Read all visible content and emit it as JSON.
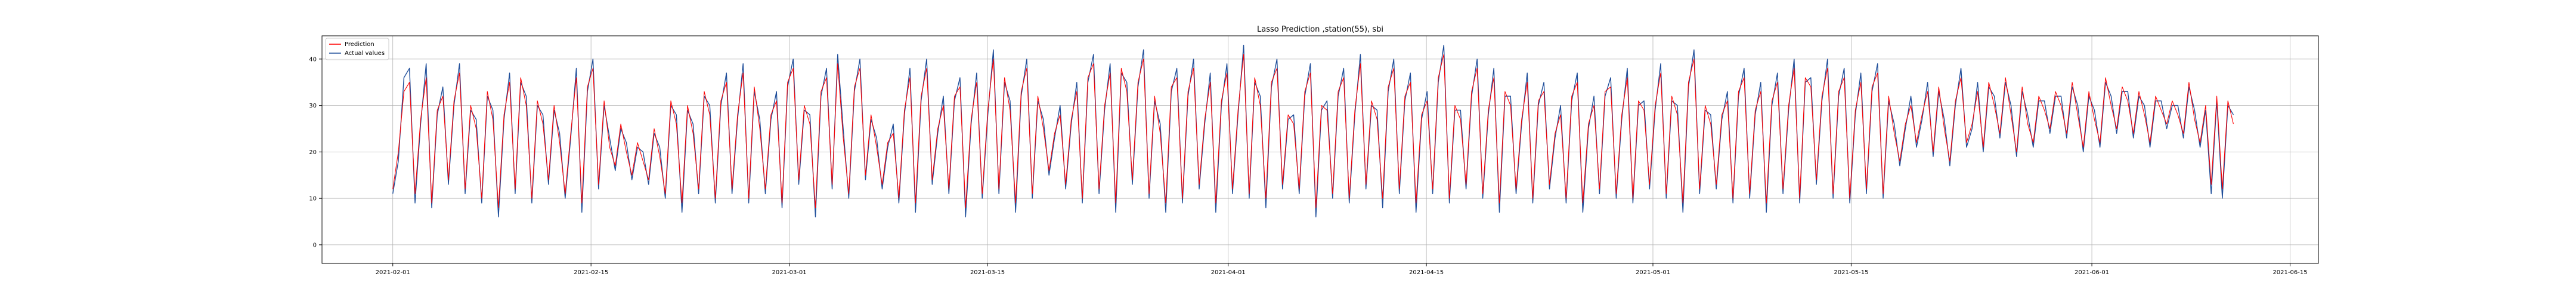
{
  "chart_data": {
    "type": "line",
    "title": "Lasso Prediction ,station(55), sbi",
    "xlabel": "",
    "ylabel": "",
    "x_tick_labels": [
      "2021-02-01",
      "2021-02-15",
      "2021-03-01",
      "2021-03-15",
      "2021-04-01",
      "2021-04-15",
      "2021-05-01",
      "2021-05-15",
      "2021-06-01",
      "2021-06-15"
    ],
    "y_ticks": [
      0,
      10,
      20,
      30,
      40
    ],
    "xlim": [
      "2021-01-27",
      "2021-06-17"
    ],
    "ylim": [
      -4,
      45
    ],
    "x_start": "2021-02-01",
    "x_end": "2021-06-11",
    "grid": true,
    "legend_position": "upper left",
    "series": [
      {
        "name": "Prediction",
        "color": "#ff0000",
        "values": [
          12,
          20,
          33,
          35,
          11,
          27,
          36,
          9,
          29,
          32,
          14,
          31,
          37,
          12,
          30,
          25,
          10,
          33,
          27,
          8,
          28,
          35,
          12,
          36,
          30,
          10,
          31,
          26,
          14,
          30,
          22,
          11,
          24,
          36,
          9,
          34,
          38,
          13,
          31,
          21,
          17,
          26,
          20,
          15,
          22,
          18,
          14,
          25,
          19,
          11,
          31,
          26,
          9,
          30,
          24,
          12,
          33,
          28,
          10,
          31,
          35,
          12,
          28,
          37,
          10,
          34,
          25,
          12,
          28,
          31,
          9,
          35,
          38,
          14,
          30,
          26,
          8,
          33,
          36,
          13,
          39,
          23,
          11,
          34,
          38,
          15,
          28,
          21,
          13,
          22,
          24,
          10,
          29,
          36,
          9,
          32,
          38,
          14,
          25,
          30,
          12,
          32,
          34,
          8,
          27,
          35,
          11,
          29,
          40,
          12,
          36,
          29,
          9,
          33,
          38,
          11,
          32,
          25,
          16,
          24,
          28,
          13,
          27,
          33,
          10,
          36,
          39,
          12,
          30,
          37,
          9,
          38,
          33,
          14,
          35,
          40,
          11,
          32,
          24,
          9,
          34,
          36,
          10,
          33,
          38,
          13,
          27,
          35,
          9,
          31,
          37,
          12,
          29,
          41,
          11,
          36,
          30,
          10,
          35,
          38,
          13,
          28,
          26,
          12,
          33,
          37,
          8,
          30,
          29,
          11,
          33,
          36,
          10,
          29,
          39,
          13,
          31,
          27,
          10,
          34,
          38,
          12,
          32,
          35,
          9,
          28,
          31,
          12,
          36,
          41,
          10,
          30,
          27,
          13,
          33,
          38,
          11,
          29,
          36,
          9,
          33,
          30,
          12,
          27,
          35,
          10,
          31,
          33,
          13,
          24,
          28,
          10,
          32,
          35,
          9,
          26,
          30,
          12,
          33,
          34,
          11,
          28,
          36,
          10,
          31,
          29,
          13,
          30,
          37,
          11,
          32,
          28,
          9,
          35,
          40,
          12,
          30,
          26,
          13,
          28,
          31,
          10,
          33,
          36,
          11,
          29,
          33,
          9,
          31,
          35,
          12,
          30,
          38,
          10,
          36,
          34,
          14,
          32,
          38,
          11,
          33,
          36,
          10,
          29,
          35,
          12,
          34,
          37,
          11,
          32,
          24,
          18,
          26,
          30,
          22,
          28,
          33,
          20,
          34,
          25,
          18,
          31,
          36,
          22,
          26,
          33,
          21,
          35,
          30,
          24,
          36,
          28,
          20,
          34,
          26,
          22,
          32,
          29,
          25,
          33,
          30,
          24,
          35,
          28,
          21,
          33,
          27,
          22,
          36,
          30,
          25,
          34,
          31,
          24,
          33,
          28,
          22,
          32,
          29,
          26,
          31,
          28,
          24,
          35,
          27,
          22,
          30,
          13,
          32,
          12,
          31,
          26
        ]
      },
      {
        "name": "Actual values",
        "color": "#1f4e9a",
        "values": [
          11,
          18,
          36,
          38,
          9,
          26,
          39,
          8,
          28,
          34,
          13,
          30,
          39,
          11,
          29,
          27,
          9,
          32,
          29,
          6,
          27,
          37,
          11,
          35,
          32,
          9,
          30,
          28,
          13,
          29,
          24,
          10,
          23,
          38,
          7,
          33,
          40,
          12,
          30,
          23,
          16,
          25,
          22,
          14,
          21,
          20,
          13,
          24,
          21,
          10,
          30,
          28,
          7,
          29,
          26,
          11,
          32,
          30,
          9,
          30,
          37,
          11,
          27,
          39,
          9,
          33,
          27,
          11,
          27,
          33,
          8,
          34,
          40,
          13,
          29,
          28,
          6,
          32,
          38,
          12,
          41,
          25,
          10,
          33,
          40,
          14,
          27,
          23,
          12,
          21,
          26,
          9,
          28,
          38,
          7,
          31,
          40,
          13,
          24,
          32,
          11,
          31,
          36,
          6,
          26,
          37,
          10,
          28,
          42,
          11,
          35,
          31,
          7,
          32,
          40,
          10,
          31,
          27,
          15,
          23,
          30,
          12,
          26,
          35,
          9,
          35,
          41,
          11,
          29,
          39,
          7,
          37,
          35,
          13,
          34,
          42,
          10,
          31,
          26,
          7,
          33,
          38,
          9,
          32,
          40,
          12,
          26,
          37,
          7,
          30,
          39,
          11,
          28,
          43,
          10,
          35,
          32,
          8,
          34,
          40,
          12,
          27,
          28,
          11,
          32,
          39,
          6,
          29,
          31,
          10,
          32,
          38,
          9,
          28,
          41,
          12,
          30,
          29,
          8,
          33,
          40,
          11,
          31,
          37,
          7,
          27,
          33,
          11,
          35,
          43,
          9,
          29,
          29,
          12,
          32,
          40,
          10,
          28,
          38,
          7,
          32,
          32,
          11,
          26,
          37,
          9,
          30,
          35,
          12,
          23,
          30,
          9,
          31,
          37,
          7,
          25,
          32,
          11,
          32,
          36,
          10,
          27,
          38,
          9,
          30,
          31,
          12,
          29,
          39,
          10,
          31,
          30,
          7,
          34,
          42,
          11,
          29,
          28,
          12,
          27,
          33,
          9,
          32,
          38,
          10,
          28,
          35,
          7,
          30,
          37,
          11,
          29,
          40,
          9,
          35,
          36,
          13,
          31,
          40,
          10,
          32,
          38,
          9,
          28,
          37,
          11,
          33,
          39,
          10,
          31,
          26,
          17,
          25,
          32,
          21,
          27,
          35,
          19,
          33,
          27,
          17,
          30,
          38,
          21,
          25,
          35,
          20,
          34,
          32,
          23,
          35,
          30,
          19,
          33,
          28,
          21,
          31,
          31,
          24,
          32,
          32,
          23,
          34,
          30,
          20,
          32,
          29,
          21,
          35,
          32,
          24,
          33,
          33,
          23,
          32,
          30,
          21,
          31,
          31,
          25,
          30,
          30,
          23,
          34,
          29,
          21,
          29,
          11,
          31,
          10,
          30,
          28
        ]
      }
    ]
  }
}
